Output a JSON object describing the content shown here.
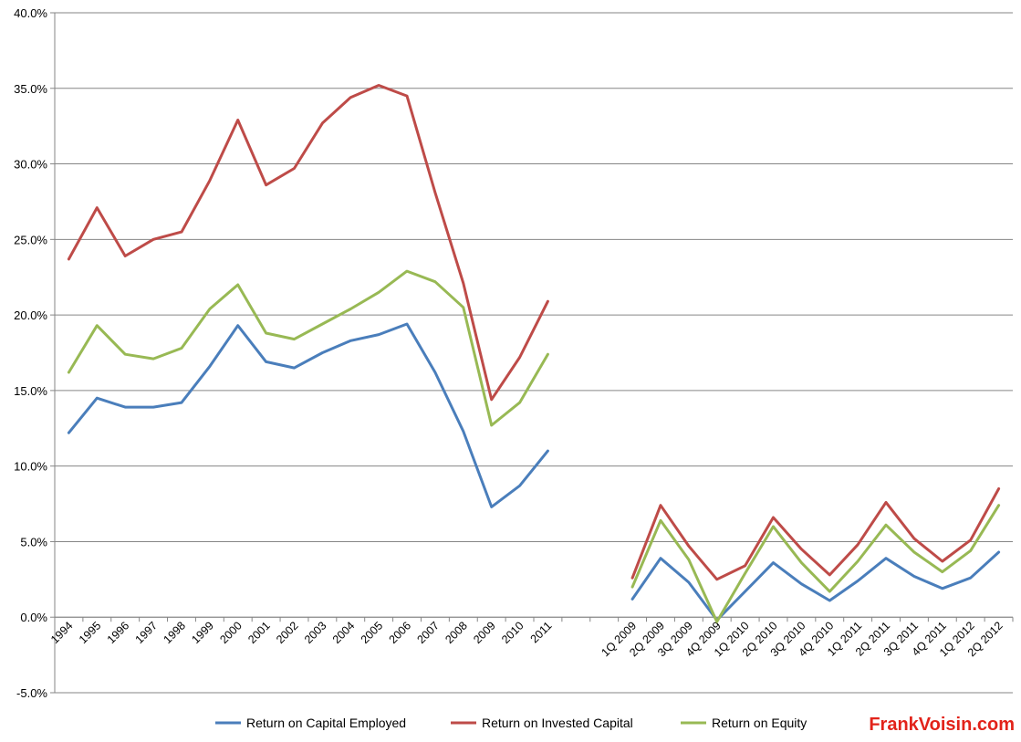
{
  "chart_data": {
    "type": "line",
    "categories": [
      "1994",
      "1995",
      "1996",
      "1997",
      "1998",
      "1999",
      "2000",
      "2001",
      "2002",
      "2003",
      "2004",
      "2005",
      "2006",
      "2007",
      "2008",
      "2009",
      "2010",
      "2011",
      "",
      "",
      "1Q 2009",
      "2Q 2009",
      "3Q 2009",
      "4Q 2009",
      "1Q 2010",
      "2Q 2010",
      "3Q 2010",
      "4Q 2010",
      "1Q 2011",
      "2Q 2011",
      "3Q 2011",
      "4Q 2011",
      "1Q 2012",
      "2Q 2012"
    ],
    "series": [
      {
        "name": "Return on Capital Employed",
        "color": "#4a7ebb",
        "values": [
          12.2,
          14.5,
          13.9,
          13.9,
          14.2,
          16.6,
          19.3,
          16.9,
          16.5,
          17.5,
          18.3,
          18.7,
          19.4,
          16.2,
          12.3,
          7.3,
          8.7,
          11.0,
          null,
          null,
          1.2,
          3.9,
          2.3,
          -0.2,
          1.7,
          3.6,
          2.2,
          1.1,
          2.4,
          3.9,
          2.7,
          1.9,
          2.6,
          4.3
        ]
      },
      {
        "name": "Return on Invested Capital",
        "color": "#be4b48",
        "values": [
          23.7,
          27.1,
          23.9,
          25.0,
          25.5,
          28.9,
          32.9,
          28.6,
          29.7,
          32.7,
          34.4,
          35.2,
          34.5,
          28.1,
          22.1,
          14.4,
          17.2,
          20.9,
          null,
          null,
          2.6,
          7.4,
          4.7,
          2.5,
          3.4,
          6.6,
          4.5,
          2.8,
          4.8,
          7.6,
          5.2,
          3.7,
          5.1,
          8.5
        ]
      },
      {
        "name": "Return on Equity",
        "color": "#98b954",
        "values": [
          16.2,
          19.3,
          17.4,
          17.1,
          17.8,
          20.4,
          22.0,
          18.8,
          18.4,
          19.4,
          20.4,
          21.5,
          22.9,
          22.2,
          20.5,
          12.7,
          14.2,
          17.4,
          null,
          null,
          2.0,
          6.4,
          3.8,
          -0.3,
          2.9,
          6.0,
          3.6,
          1.7,
          3.7,
          6.1,
          4.3,
          3.0,
          4.4,
          7.4
        ]
      }
    ],
    "ylim": [
      -5,
      40
    ],
    "ytick_step": 5,
    "ytick_format": "percent_1dp",
    "grid": true,
    "legend": "bottom",
    "title": "",
    "xlabel": "",
    "ylabel": ""
  },
  "watermark": "FrankVoisin.com"
}
